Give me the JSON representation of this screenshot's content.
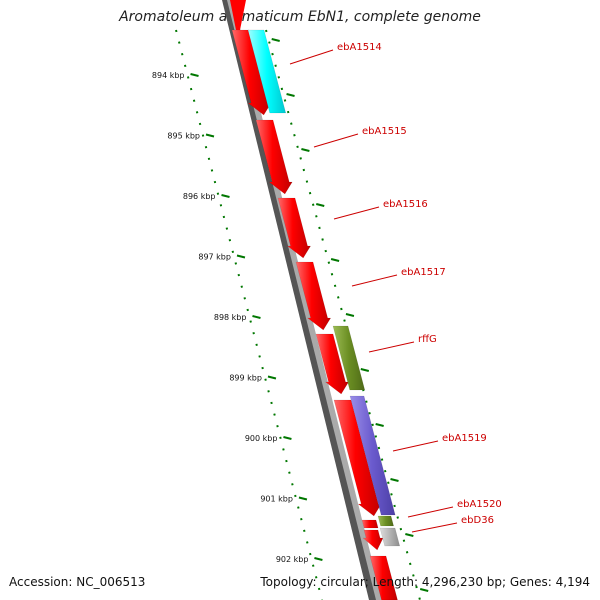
{
  "title": "Aromatoleum aromaticum EbN1, complete genome",
  "footer": {
    "accession": "Accession: NC_006513",
    "summary": "Topology: circular; Length: 4,296,230 bp; Genes: 4,194"
  },
  "scale_ticks": [
    "894 kbp",
    "895 kbp",
    "896 kbp",
    "897 kbp",
    "898 kbp",
    "899 kbp",
    "900 kbp",
    "901 kbp",
    "902 kbp"
  ],
  "gene_labels": [
    "ebA1514",
    "ebA1515",
    "ebA1516",
    "ebA1517",
    "rffG",
    "ebA1519",
    "ebA1520",
    "ebD36"
  ],
  "colors": {
    "cds": "#ff0000",
    "feature_cyan": "#00ffff",
    "feature_olive": "#6b8e23",
    "feature_purple": "#6a5acd",
    "feature_grey": "#b0b0b0",
    "backbone": "#888888",
    "tick_green": "#007700",
    "label_red": "#cc0000"
  }
}
